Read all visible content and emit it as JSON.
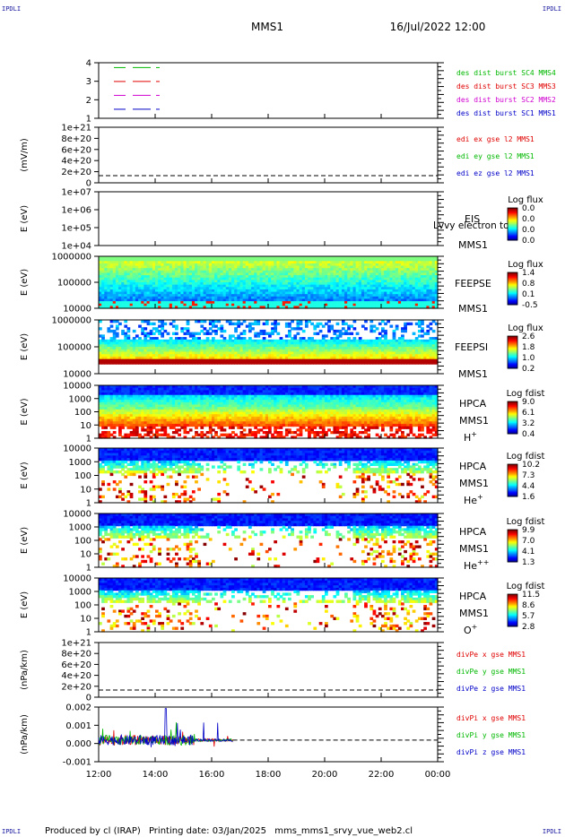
{
  "corners": {
    "tl": "IPDLI",
    "tr": "IPDLI",
    "bl": "IPDLI",
    "br": "IPDLI"
  },
  "header": {
    "spacecraft": "MMS1",
    "datetime": "16/Jul/2022 12:00"
  },
  "footer": {
    "produced_by": "Produced by cl (IRAP)",
    "printing_date": "Printing date: 03/Jan/2025",
    "filename": "mms_mms1_srvy_vue_web2.cl"
  },
  "x_axis": {
    "range": [
      "12:00",
      "00:00"
    ],
    "ticks": [
      "12:00",
      "14:00",
      "16:00",
      "18:00",
      "20:00",
      "22:00",
      "00:00"
    ]
  },
  "colors": {
    "red": "#e00000",
    "green": "#00b800",
    "blue": "#0000c8",
    "magenta": "#d000d0"
  },
  "chart_data": [
    {
      "type": "line",
      "ylabel": "",
      "yticks": [
        "4",
        "3",
        "2",
        "1"
      ],
      "ylim": [
        0.5,
        4.5
      ],
      "series": [
        {
          "name": "des dist burst SC1 MMS1",
          "color": "#0000c8",
          "level": 1
        },
        {
          "name": "des dist burst SC2 MMS2",
          "color": "#d000d0",
          "level": 2
        },
        {
          "name": "des dist burst SC3 MMS3",
          "color": "#e00000",
          "level": 3
        },
        {
          "name": "des dist burst SC4 MMS4",
          "color": "#00b800",
          "level": 4
        }
      ]
    },
    {
      "type": "line",
      "ylabel": "(mV/m)",
      "yticks": [
        "1e+21",
        "8e+20",
        "6e+20",
        "4e+20",
        "2e+20",
        "0"
      ],
      "series": [
        {
          "name": "edi ex gse l2 MMS1",
          "color": "#e00000"
        },
        {
          "name": "edi ey gse l2 MMS1",
          "color": "#00b800"
        },
        {
          "name": "edi ez gse l2 MMS1",
          "color": "#0000c8"
        }
      ]
    },
    {
      "type": "heatmap",
      "ylabel": "E (eV)",
      "yticks": [
        "1e+07",
        "1e+06",
        "1e+05",
        "1e+04"
      ],
      "instrument": [
        "EIS",
        "MMS1"
      ],
      "note": "Lvvy electron to",
      "colorbar": {
        "title": "Log flux",
        "ticks": [
          "0.0",
          "0.0",
          "0.0",
          "0.0"
        ]
      }
    },
    {
      "type": "heatmap",
      "ylabel": "E (eV)",
      "yticks": [
        "1000000",
        "100000",
        "10000"
      ],
      "instrument": [
        "FEEPSE",
        "MMS1"
      ],
      "colorbar": {
        "title": "Log flux",
        "ticks": [
          "1.4",
          "0.8",
          "0.1",
          "-0.5"
        ]
      }
    },
    {
      "type": "heatmap",
      "ylabel": "E (eV)",
      "yticks": [
        "1000000",
        "100000",
        "10000"
      ],
      "instrument": [
        "FEEPSI",
        "MMS1"
      ],
      "colorbar": {
        "title": "Log flux",
        "ticks": [
          "2.6",
          "1.8",
          "1.0",
          "0.2"
        ]
      }
    },
    {
      "type": "heatmap",
      "ylabel": "E (eV)",
      "yticks": [
        "10000",
        "1000",
        "100",
        "10",
        "1"
      ],
      "instrument": [
        "HPCA",
        "MMS1"
      ],
      "species": "H",
      "species_sup": "+",
      "colorbar": {
        "title": "Log fdist",
        "ticks": [
          "9.0",
          "6.1",
          "3.2",
          "0.4"
        ]
      }
    },
    {
      "type": "heatmap",
      "ylabel": "E (eV)",
      "yticks": [
        "10000",
        "1000",
        "100",
        "10",
        "1"
      ],
      "instrument": [
        "HPCA",
        "MMS1"
      ],
      "species": "He",
      "species_sup": "+",
      "colorbar": {
        "title": "Log fdist",
        "ticks": [
          "10.2",
          "7.3",
          "4.4",
          "1.6"
        ]
      }
    },
    {
      "type": "heatmap",
      "ylabel": "E (eV)",
      "yticks": [
        "10000",
        "1000",
        "100",
        "10",
        "1"
      ],
      "instrument": [
        "HPCA",
        "MMS1"
      ],
      "species": "He",
      "species_sup": "++",
      "colorbar": {
        "title": "Log fdist",
        "ticks": [
          "9.9",
          "7.0",
          "4.1",
          "1.3"
        ]
      }
    },
    {
      "type": "heatmap",
      "ylabel": "E (eV)",
      "yticks": [
        "10000",
        "1000",
        "100",
        "10",
        "1"
      ],
      "instrument": [
        "HPCA",
        "MMS1"
      ],
      "species": "O",
      "species_sup": "+",
      "colorbar": {
        "title": "Log fdist",
        "ticks": [
          "11.5",
          "8.6",
          "5.7",
          "2.8"
        ]
      }
    },
    {
      "type": "line",
      "ylabel": "(nPa/km)",
      "yticks": [
        "1e+21",
        "8e+20",
        "6e+20",
        "4e+20",
        "2e+20",
        "0"
      ],
      "series": [
        {
          "name": "divPe x gse MMS1",
          "color": "#e00000"
        },
        {
          "name": "divPe y gse MMS1",
          "color": "#00b800"
        },
        {
          "name": "divPe z gse MMS1",
          "color": "#0000c8"
        }
      ]
    },
    {
      "type": "line",
      "ylabel": "(nPa/km)",
      "yticks": [
        "0.002",
        "0.001",
        "0.000",
        "-0.001"
      ],
      "ylim": [
        -0.0015,
        0.0023
      ],
      "data_end": "16:45",
      "series": [
        {
          "name": "divPi x gse MMS1",
          "color": "#e00000"
        },
        {
          "name": "divPi y gse MMS1",
          "color": "#00b800"
        },
        {
          "name": "divPi z gse MMS1",
          "color": "#0000c8"
        }
      ]
    }
  ]
}
